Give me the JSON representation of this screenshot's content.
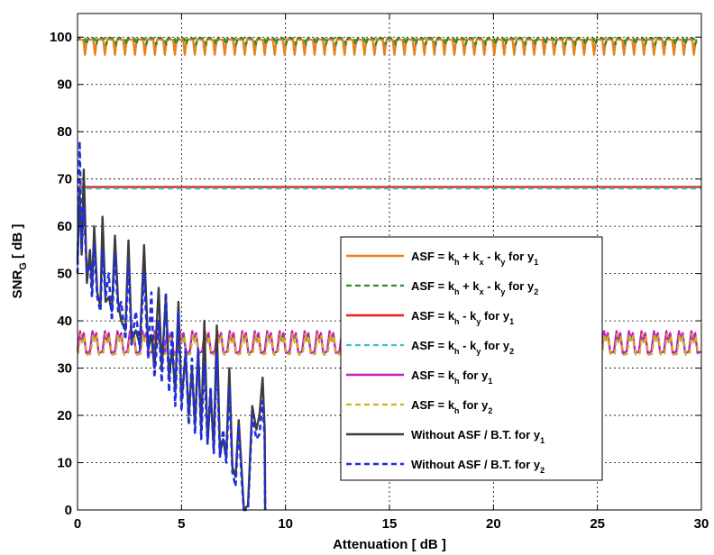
{
  "chart_data": {
    "type": "line",
    "xlabel": "Attenuation [ dB ]",
    "ylabel": {
      "main": "SNR",
      "sub": "G",
      "rest": " [ dB ]"
    },
    "xlim": [
      0,
      30
    ],
    "ylim": [
      0,
      105
    ],
    "xticks": [
      0,
      5,
      10,
      15,
      20,
      25,
      30
    ],
    "yticks": [
      0,
      10,
      20,
      30,
      40,
      50,
      60,
      70,
      80,
      90,
      100
    ],
    "xtick_labels": [
      "0",
      "5",
      "10",
      "15",
      "20",
      "25",
      "30"
    ],
    "ytick_labels": [
      "0",
      "10",
      "20",
      "30",
      "40",
      "50",
      "60",
      "70",
      "80",
      "90",
      "100"
    ],
    "grid": true,
    "legend_position": "center-right",
    "series": [
      {
        "name": "ASF = k_h + k_x - k_y for y_1",
        "legend": [
          {
            "t": "ASF = k"
          },
          {
            "t": "h",
            "s": 1
          },
          {
            "t": " + k"
          },
          {
            "t": "x",
            "s": 1
          },
          {
            "t": " - k"
          },
          {
            "t": "y",
            "s": 1
          },
          {
            "t": " for y"
          },
          {
            "t": "1",
            "s": 1
          }
        ],
        "color": "#e8821e",
        "dash": false,
        "width": 2.4,
        "periodic": {
          "period": 0.48,
          "phase": 0.0,
          "pattern": [
            [
              0,
              99.6
            ],
            [
              0.28,
              99.4
            ],
            [
              0.36,
              96.3
            ],
            [
              0.42,
              98.5
            ],
            [
              0.48,
              99.6
            ]
          ]
        }
      },
      {
        "name": "ASF = k_h + k_x - k_y for y_2",
        "legend": [
          {
            "t": "ASF = k"
          },
          {
            "t": "h",
            "s": 1
          },
          {
            "t": " + k"
          },
          {
            "t": "x",
            "s": 1
          },
          {
            "t": " - k"
          },
          {
            "t": "y",
            "s": 1
          },
          {
            "t": " for y"
          },
          {
            "t": "2",
            "s": 1
          }
        ],
        "color": "#2e8b2e",
        "dash": true,
        "width": 2.2,
        "periodic": {
          "period": 0.48,
          "phase": 0.05,
          "pattern": [
            [
              0,
              99.9
            ],
            [
              0.3,
              99.7
            ],
            [
              0.37,
              98.4
            ],
            [
              0.43,
              99.2
            ],
            [
              0.48,
              99.9
            ]
          ]
        }
      },
      {
        "name": "ASF = k_h - k_y for y_1",
        "legend": [
          {
            "t": "ASF = k"
          },
          {
            "t": "h",
            "s": 1
          },
          {
            "t": " - k"
          },
          {
            "t": "y",
            "s": 1
          },
          {
            "t": " for y"
          },
          {
            "t": "1",
            "s": 1
          }
        ],
        "color": "#e8201e",
        "dash": false,
        "width": 2.4,
        "x": [
          0,
          30
        ],
        "y": [
          68.3,
          68.3
        ]
      },
      {
        "name": "ASF = k_h - k_y for y_2",
        "legend": [
          {
            "t": "ASF = k"
          },
          {
            "t": "h",
            "s": 1
          },
          {
            "t": " - k"
          },
          {
            "t": "y",
            "s": 1
          },
          {
            "t": " for y"
          },
          {
            "t": "2",
            "s": 1
          }
        ],
        "color": "#36c4c4",
        "dash": true,
        "width": 2.2,
        "x": [
          0,
          30
        ],
        "y": [
          68.0,
          68.0
        ]
      },
      {
        "name": "ASF = k_h for y_1",
        "legend": [
          {
            "t": "ASF = k"
          },
          {
            "t": "h",
            "s": 1
          },
          {
            "t": " for y"
          },
          {
            "t": "1",
            "s": 1
          }
        ],
        "color": "#c020c0",
        "dash": false,
        "width": 2.4,
        "periodic": {
          "period": 0.6,
          "phase": 0.0,
          "pattern": [
            [
              0,
              33.5
            ],
            [
              0.12,
              37.8
            ],
            [
              0.2,
              36.0
            ],
            [
              0.3,
              37.4
            ],
            [
              0.42,
              33.2
            ],
            [
              0.6,
              33.5
            ]
          ]
        }
      },
      {
        "name": "ASF = k_h for y_2",
        "legend": [
          {
            "t": "ASF = k"
          },
          {
            "t": "h",
            "s": 1
          },
          {
            "t": " for y"
          },
          {
            "t": "2",
            "s": 1
          }
        ],
        "color": "#c8b41e",
        "dash": true,
        "width": 2.2,
        "periodic": {
          "period": 0.6,
          "phase": 0.03,
          "pattern": [
            [
              0,
              33.0
            ],
            [
              0.12,
              37.2
            ],
            [
              0.2,
              35.4
            ],
            [
              0.3,
              36.8
            ],
            [
              0.42,
              32.8
            ],
            [
              0.6,
              33.0
            ]
          ]
        }
      },
      {
        "name": "Without ASF / B.T. for y_1",
        "legend": [
          {
            "t": "Without ASF / B.T. for y"
          },
          {
            "t": "1",
            "s": 1
          }
        ],
        "color": "#3c3c3c",
        "dash": false,
        "width": 2.4,
        "x": [
          0.0,
          0.1,
          0.2,
          0.3,
          0.45,
          0.6,
          0.7,
          0.8,
          0.95,
          1.1,
          1.2,
          1.35,
          1.5,
          1.65,
          1.8,
          1.95,
          2.1,
          2.3,
          2.45,
          2.6,
          2.8,
          3.0,
          3.2,
          3.4,
          3.55,
          3.7,
          3.9,
          4.05,
          4.25,
          4.4,
          4.55,
          4.7,
          4.85,
          5.0,
          5.2,
          5.35,
          5.5,
          5.65,
          5.8,
          5.95,
          6.1,
          6.25,
          6.4,
          6.55,
          6.7,
          6.85,
          7.0,
          7.15,
          7.3,
          7.45,
          7.6,
          7.75,
          7.9,
          8.0,
          8.2,
          8.4,
          8.6,
          8.75,
          8.9,
          9.0,
          9.02
        ],
        "y": [
          53,
          67,
          54,
          72,
          48,
          55,
          47,
          60,
          46,
          43,
          62,
          44,
          45,
          42,
          58,
          44,
          40,
          38,
          57,
          36,
          38,
          35,
          56,
          34,
          37,
          30,
          47,
          30,
          45,
          28,
          34,
          25,
          44,
          23,
          33,
          20,
          30,
          18,
          34,
          17,
          40,
          14,
          25,
          13,
          39,
          12,
          15,
          11,
          30,
          9,
          7,
          19,
          8,
          0,
          1,
          22,
          17,
          20,
          28,
          17,
          0
        ]
      },
      {
        "name": "Without ASF / B.T. for y_2",
        "legend": [
          {
            "t": "Without ASF / B.T. for y"
          },
          {
            "t": "2",
            "s": 1
          }
        ],
        "color": "#1f2ee0",
        "dash": true,
        "width": 2.6,
        "x": [
          0.0,
          0.1,
          0.2,
          0.3,
          0.45,
          0.6,
          0.7,
          0.8,
          0.95,
          1.1,
          1.2,
          1.35,
          1.5,
          1.65,
          1.8,
          1.95,
          2.1,
          2.3,
          2.45,
          2.6,
          2.8,
          3.0,
          3.2,
          3.4,
          3.55,
          3.7,
          3.9,
          4.05,
          4.25,
          4.4,
          4.55,
          4.7,
          4.85,
          5.0,
          5.2,
          5.35,
          5.5,
          5.65,
          5.8,
          5.95,
          6.1,
          6.25,
          6.4,
          6.55,
          6.7,
          6.85,
          7.0,
          7.15,
          7.3,
          7.45,
          7.6,
          7.75,
          7.9,
          8.0,
          8.2,
          8.4,
          8.6,
          8.75,
          8.9,
          9.0,
          9.02
        ],
        "y": [
          50,
          78,
          55,
          64,
          50,
          52,
          45,
          56,
          45,
          42,
          55,
          45,
          50,
          40,
          54,
          42,
          44,
          36,
          52,
          35,
          42,
          34,
          50,
          32,
          46,
          28,
          40,
          27,
          46,
          25,
          38,
          22,
          42,
          21,
          34,
          18,
          32,
          16,
          34,
          15,
          31,
          14,
          26,
          12,
          33,
          11,
          17,
          10,
          26,
          8,
          5,
          18,
          6,
          0,
          0,
          20,
          15,
          16,
          23,
          15,
          0
        ]
      }
    ]
  }
}
